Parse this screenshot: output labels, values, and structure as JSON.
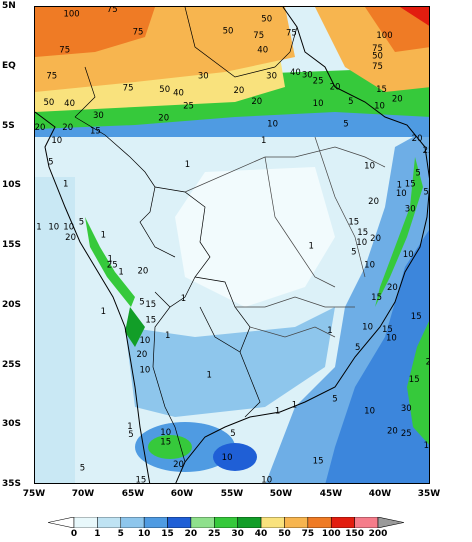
{
  "lat_ticks": [
    "5N",
    "EQ",
    "5S",
    "10S",
    "15S",
    "20S",
    "25S",
    "30S",
    "35S"
  ],
  "lon_ticks": [
    "75W",
    "70W",
    "65W",
    "60W",
    "55W",
    "50W",
    "45W",
    "40W",
    "35W"
  ],
  "colorbar": {
    "levels": [
      "0",
      "1",
      "5",
      "10",
      "15",
      "20",
      "25",
      "30",
      "40",
      "50",
      "75",
      "100",
      "150",
      "200"
    ],
    "colors": [
      "#e8f8fb",
      "#bfe3f3",
      "#8ec6ec",
      "#4f9be2",
      "#1f5fd6",
      "#8fe08c",
      "#36c93b",
      "#129e28",
      "#f9e27d",
      "#f7b54f",
      "#ef7b25",
      "#e21d0f",
      "#f57c8a"
    ],
    "under_color": "#ffffff",
    "over_color": "#9a9a9a"
  },
  "contour_labels": [
    {
      "text": "100",
      "lon": -71.3,
      "lat": 4.2
    },
    {
      "text": "75",
      "lon": -67.2,
      "lat": 4.6
    },
    {
      "text": "50",
      "lon": -51.6,
      "lat": 3.8
    },
    {
      "text": "75",
      "lon": -64.6,
      "lat": 2.7
    },
    {
      "text": "50",
      "lon": -55.5,
      "lat": 2.8
    },
    {
      "text": "75",
      "lon": -49.1,
      "lat": 2.6
    },
    {
      "text": "75",
      "lon": -52.4,
      "lat": 2.4
    },
    {
      "text": "75",
      "lon": -72.0,
      "lat": 1.2
    },
    {
      "text": "40",
      "lon": -52.0,
      "lat": 1.2
    },
    {
      "text": "100",
      "lon": -39.7,
      "lat": 2.4
    },
    {
      "text": "75",
      "lon": -40.4,
      "lat": 1.3
    },
    {
      "text": "50",
      "lon": -40.4,
      "lat": 0.7
    },
    {
      "text": "75",
      "lon": -40.4,
      "lat": -0.2
    },
    {
      "text": "75",
      "lon": -73.3,
      "lat": -1.0
    },
    {
      "text": "30",
      "lon": -58.0,
      "lat": -1.0
    },
    {
      "text": "75",
      "lon": -65.6,
      "lat": -2.0
    },
    {
      "text": "50",
      "lon": -61.9,
      "lat": -2.1
    },
    {
      "text": "40",
      "lon": -60.5,
      "lat": -2.4
    },
    {
      "text": "20",
      "lon": -54.4,
      "lat": -2.2
    },
    {
      "text": "30",
      "lon": -51.1,
      "lat": -1.0
    },
    {
      "text": "40",
      "lon": -48.7,
      "lat": -0.7
    },
    {
      "text": "30",
      "lon": -47.5,
      "lat": -0.9
    },
    {
      "text": "25",
      "lon": -46.4,
      "lat": -1.4
    },
    {
      "text": "20",
      "lon": -44.7,
      "lat": -1.9
    },
    {
      "text": "15",
      "lon": -40.0,
      "lat": -2.1
    },
    {
      "text": "50",
      "lon": -73.6,
      "lat": -3.2
    },
    {
      "text": "40",
      "lon": -71.5,
      "lat": -3.3
    },
    {
      "text": "25",
      "lon": -59.5,
      "lat": -3.5
    },
    {
      "text": "20",
      "lon": -52.6,
      "lat": -3.1
    },
    {
      "text": "10",
      "lon": -46.4,
      "lat": -3.3
    },
    {
      "text": "5",
      "lon": -43.1,
      "lat": -3.1
    },
    {
      "text": "10",
      "lon": -40.2,
      "lat": -3.5
    },
    {
      "text": "20",
      "lon": -38.4,
      "lat": -2.9
    },
    {
      "text": "30",
      "lon": -68.6,
      "lat": -4.3
    },
    {
      "text": "20",
      "lon": -62.0,
      "lat": -4.5
    },
    {
      "text": "20",
      "lon": -74.5,
      "lat": -5.3
    },
    {
      "text": "20",
      "lon": -71.7,
      "lat": -5.3
    },
    {
      "text": "15",
      "lon": -68.9,
      "lat": -5.6
    },
    {
      "text": "10",
      "lon": -51.0,
      "lat": -5.0
    },
    {
      "text": "5",
      "lon": -43.6,
      "lat": -5.0
    },
    {
      "text": "20",
      "lon": -36.4,
      "lat": -6.2
    },
    {
      "text": "10",
      "lon": -72.8,
      "lat": -6.4
    },
    {
      "text": "1",
      "lon": -51.9,
      "lat": -6.4
    },
    {
      "text": "25",
      "lon": -35.3,
      "lat": -7.2
    },
    {
      "text": "5",
      "lon": -73.4,
      "lat": -8.2
    },
    {
      "text": "1",
      "lon": -59.6,
      "lat": -8.4
    },
    {
      "text": "10",
      "lon": -41.2,
      "lat": -8.5
    },
    {
      "text": "5",
      "lon": -36.3,
      "lat": -9.1
    },
    {
      "text": "15",
      "lon": -37.1,
      "lat": -10.0
    },
    {
      "text": "1",
      "lon": -71.9,
      "lat": -10.0
    },
    {
      "text": "1",
      "lon": -38.2,
      "lat": -10.1
    },
    {
      "text": "10",
      "lon": -38.0,
      "lat": -10.8
    },
    {
      "text": "20",
      "lon": -40.8,
      "lat": -11.5
    },
    {
      "text": "5",
      "lon": -35.5,
      "lat": -10.7
    },
    {
      "text": "30",
      "lon": -37.1,
      "lat": -12.1
    },
    {
      "text": "5",
      "lon": -70.3,
      "lat": -13.2
    },
    {
      "text": "1",
      "lon": -74.6,
      "lat": -13.6
    },
    {
      "text": "10",
      "lon": -73.1,
      "lat": -13.6
    },
    {
      "text": "10",
      "lon": -71.6,
      "lat": -13.6
    },
    {
      "text": "20",
      "lon": -71.4,
      "lat": -14.5
    },
    {
      "text": "15",
      "lon": -42.8,
      "lat": -13.2
    },
    {
      "text": "1",
      "lon": -68.1,
      "lat": -14.3
    },
    {
      "text": "15",
      "lon": -41.9,
      "lat": -14.1
    },
    {
      "text": "20",
      "lon": -40.6,
      "lat": -14.6
    },
    {
      "text": "10",
      "lon": -42.0,
      "lat": -14.9
    },
    {
      "text": "5",
      "lon": -42.8,
      "lat": -15.7
    },
    {
      "text": "1",
      "lon": -47.1,
      "lat": -15.2
    },
    {
      "text": "10",
      "lon": -37.3,
      "lat": -15.9
    },
    {
      "text": "1",
      "lon": -67.4,
      "lat": -16.3
    },
    {
      "text": "25",
      "lon": -67.2,
      "lat": -16.8
    },
    {
      "text": "10",
      "lon": -41.2,
      "lat": -16.8
    },
    {
      "text": "1",
      "lon": -66.3,
      "lat": -17.4
    },
    {
      "text": "20",
      "lon": -64.1,
      "lat": -17.3
    },
    {
      "text": "20",
      "lon": -38.9,
      "lat": -18.7
    },
    {
      "text": "15",
      "lon": -40.5,
      "lat": -19.5
    },
    {
      "text": "5",
      "lon": -64.2,
      "lat": -19.9
    },
    {
      "text": "15",
      "lon": -63.3,
      "lat": -20.1
    },
    {
      "text": "1",
      "lon": -60.0,
      "lat": -19.6
    },
    {
      "text": "1",
      "lon": -68.1,
      "lat": -20.7
    },
    {
      "text": "15",
      "lon": -63.3,
      "lat": -21.4
    },
    {
      "text": "15",
      "lon": -36.5,
      "lat": -21.1
    },
    {
      "text": "10",
      "lon": -41.4,
      "lat": -22.0
    },
    {
      "text": "15",
      "lon": -39.4,
      "lat": -22.2
    },
    {
      "text": "10",
      "lon": -39.0,
      "lat": -22.9
    },
    {
      "text": "1",
      "lon": -61.6,
      "lat": -22.7
    },
    {
      "text": "1",
      "lon": -45.2,
      "lat": -22.3
    },
    {
      "text": "10",
      "lon": -63.9,
      "lat": -23.1
    },
    {
      "text": "5",
      "lon": -42.4,
      "lat": -23.7
    },
    {
      "text": "20",
      "lon": -64.2,
      "lat": -24.3
    },
    {
      "text": "10",
      "lon": -63.9,
      "lat": -25.6
    },
    {
      "text": "25",
      "lon": -35.0,
      "lat": -24.9
    },
    {
      "text": "1",
      "lon": -57.4,
      "lat": -26.0
    },
    {
      "text": "15",
      "lon": -36.7,
      "lat": -26.4
    },
    {
      "text": "5",
      "lon": -44.7,
      "lat": -28.0
    },
    {
      "text": "1",
      "lon": -48.8,
      "lat": -28.5
    },
    {
      "text": "1",
      "lon": -50.5,
      "lat": -29.0
    },
    {
      "text": "10",
      "lon": -41.2,
      "lat": -29.0
    },
    {
      "text": "30",
      "lon": -37.5,
      "lat": -28.8
    },
    {
      "text": "1",
      "lon": -65.4,
      "lat": -30.3
    },
    {
      "text": "5",
      "lon": -65.3,
      "lat": -31.0
    },
    {
      "text": "10",
      "lon": -61.8,
      "lat": -30.8
    },
    {
      "text": "5",
      "lon": -55.0,
      "lat": -30.9
    },
    {
      "text": "20",
      "lon": -38.9,
      "lat": -30.7
    },
    {
      "text": "25",
      "lon": -37.5,
      "lat": -30.9
    },
    {
      "text": "15",
      "lon": -61.8,
      "lat": -31.6
    },
    {
      "text": "15",
      "lon": -35.2,
      "lat": -31.9
    },
    {
      "text": "10",
      "lon": -55.6,
      "lat": -32.9
    },
    {
      "text": "15",
      "lon": -46.4,
      "lat": -33.2
    },
    {
      "text": "20",
      "lon": -60.5,
      "lat": -33.5
    },
    {
      "text": "5",
      "lon": -70.2,
      "lat": -33.8
    },
    {
      "text": "15",
      "lon": -64.3,
      "lat": -34.8
    },
    {
      "text": "25",
      "lon": -61.4,
      "lat": -35.4
    },
    {
      "text": "10",
      "lon": -51.6,
      "lat": -34.8
    },
    {
      "text": "15",
      "lon": -58.7,
      "lat": -36.2
    },
    {
      "text": "5",
      "lon": -53.7,
      "lat": -35.4
    },
    {
      "text": "20",
      "lon": -41.6,
      "lat": -35.6
    },
    {
      "text": "10",
      "lon": -58.4,
      "lat": -37.1
    },
    {
      "text": "15",
      "lon": -58.1,
      "lat": -37.1
    },
    {
      "text": "15",
      "lon": -44.7,
      "lat": -36.8
    },
    {
      "text": "5",
      "lon": -73.4,
      "lat": -37.5
    },
    {
      "text": "15",
      "lon": -54.4,
      "lat": -38.9
    },
    {
      "text": "20",
      "lon": -44.9,
      "lat": -39.1
    },
    {
      "text": "10",
      "lon": -60.2,
      "lat": -39.7
    },
    {
      "text": "10",
      "lon": -39.7,
      "lat": -37.1
    },
    {
      "text": "10",
      "lon": -46.6,
      "lat": -39.4
    },
    {
      "text": "1",
      "lon": -69.6,
      "lat": -40.0
    },
    {
      "text": "5",
      "lon": -71.6,
      "lat": -40.5
    },
    {
      "text": "10",
      "lon": -64.9,
      "lat": -40.4
    },
    {
      "text": "15",
      "lon": -51.5,
      "lat": -40.2
    }
  ]
}
